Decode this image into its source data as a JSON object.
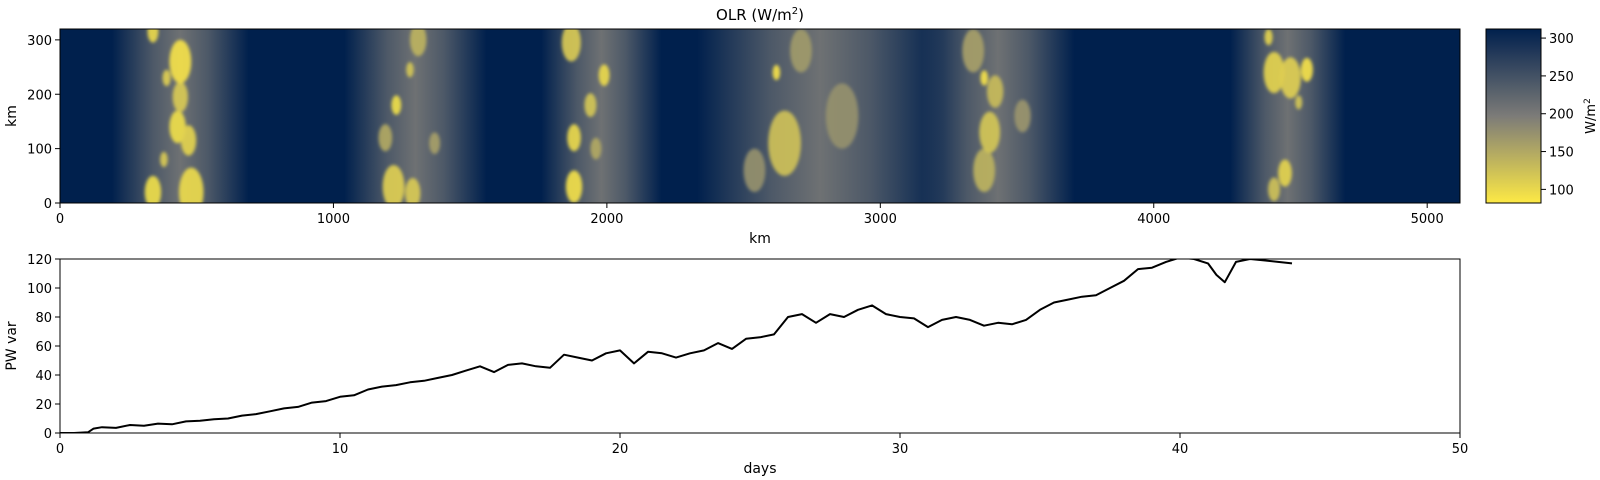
{
  "chart_data": [
    {
      "type": "heatmap",
      "title": "OLR (W/m",
      "title_sup": "2",
      "title_end": ")",
      "xlabel": "km",
      "ylabel": "km",
      "xlim": [
        0,
        5120
      ],
      "ylim": [
        0,
        320
      ],
      "xticks": [
        0,
        1000,
        2000,
        3000,
        4000,
        5000
      ],
      "yticks": [
        0,
        100,
        200,
        300
      ],
      "colormap": "cividis_r",
      "colors": {
        "high": "#00204d",
        "mid": "#7c7b78",
        "low": "#fde945"
      },
      "colorbar": {
        "label": "W/m",
        "label_sup": "2",
        "range": [
          82,
          312
        ],
        "ticks": [
          100,
          150,
          200,
          250,
          300
        ]
      },
      "convective_bands_km": [
        {
          "center": 440,
          "width": 500
        },
        {
          "center": 1300,
          "width": 520
        },
        {
          "center": 1980,
          "width": 440
        },
        {
          "center": 2780,
          "width": 900
        },
        {
          "center": 3430,
          "width": 560
        },
        {
          "center": 4490,
          "width": 420
        }
      ],
      "bright_clusters": [
        {
          "x": 340,
          "y": 20,
          "r": 30,
          "v": 95
        },
        {
          "x": 480,
          "y": 20,
          "r": 45,
          "v": 98
        },
        {
          "x": 430,
          "y": 140,
          "r": 30,
          "v": 95
        },
        {
          "x": 470,
          "y": 115,
          "r": 28,
          "v": 105
        },
        {
          "x": 440,
          "y": 195,
          "r": 28,
          "v": 115
        },
        {
          "x": 440,
          "y": 260,
          "r": 40,
          "v": 90
        },
        {
          "x": 340,
          "y": 315,
          "r": 20,
          "v": 100
        },
        {
          "x": 390,
          "y": 230,
          "r": 15,
          "v": 110
        },
        {
          "x": 380,
          "y": 80,
          "r": 14,
          "v": 115
        },
        {
          "x": 1220,
          "y": 30,
          "r": 40,
          "v": 110
        },
        {
          "x": 1290,
          "y": 18,
          "r": 28,
          "v": 115
        },
        {
          "x": 1230,
          "y": 180,
          "r": 18,
          "v": 95
        },
        {
          "x": 1310,
          "y": 300,
          "r": 30,
          "v": 140
        },
        {
          "x": 1280,
          "y": 245,
          "r": 14,
          "v": 120
        },
        {
          "x": 1190,
          "y": 120,
          "r": 25,
          "v": 150
        },
        {
          "x": 1370,
          "y": 110,
          "r": 20,
          "v": 160
        },
        {
          "x": 1880,
          "y": 30,
          "r": 30,
          "v": 92
        },
        {
          "x": 1880,
          "y": 120,
          "r": 25,
          "v": 100
        },
        {
          "x": 1940,
          "y": 180,
          "r": 22,
          "v": 120
        },
        {
          "x": 1990,
          "y": 235,
          "r": 20,
          "v": 100
        },
        {
          "x": 1870,
          "y": 295,
          "r": 35,
          "v": 115
        },
        {
          "x": 1960,
          "y": 100,
          "r": 20,
          "v": 150
        },
        {
          "x": 2650,
          "y": 110,
          "r": 60,
          "v": 125
        },
        {
          "x": 2620,
          "y": 240,
          "r": 14,
          "v": 90
        },
        {
          "x": 2710,
          "y": 280,
          "r": 40,
          "v": 165
        },
        {
          "x": 2860,
          "y": 160,
          "r": 60,
          "v": 175
        },
        {
          "x": 2540,
          "y": 60,
          "r": 40,
          "v": 175
        },
        {
          "x": 3380,
          "y": 60,
          "r": 40,
          "v": 140
        },
        {
          "x": 3400,
          "y": 130,
          "r": 38,
          "v": 120
        },
        {
          "x": 3380,
          "y": 230,
          "r": 14,
          "v": 90
        },
        {
          "x": 3420,
          "y": 205,
          "r": 30,
          "v": 130
        },
        {
          "x": 3340,
          "y": 280,
          "r": 40,
          "v": 160
        },
        {
          "x": 3520,
          "y": 160,
          "r": 30,
          "v": 170
        },
        {
          "x": 4440,
          "y": 240,
          "r": 38,
          "v": 105
        },
        {
          "x": 4500,
          "y": 230,
          "r": 38,
          "v": 110
        },
        {
          "x": 4560,
          "y": 245,
          "r": 22,
          "v": 90
        },
        {
          "x": 4420,
          "y": 305,
          "r": 15,
          "v": 105
        },
        {
          "x": 4480,
          "y": 55,
          "r": 25,
          "v": 105
        },
        {
          "x": 4440,
          "y": 25,
          "r": 22,
          "v": 125
        },
        {
          "x": 4530,
          "y": 185,
          "r": 13,
          "v": 120
        }
      ]
    },
    {
      "type": "line",
      "title": "",
      "xlabel": "days",
      "ylabel": "PW var",
      "xlim": [
        0,
        50
      ],
      "ylim": [
        0,
        120
      ],
      "xticks": [
        0,
        10,
        20,
        30,
        40,
        50
      ],
      "yticks": [
        0,
        20,
        40,
        60,
        80,
        100,
        120
      ],
      "line_color": "#000000",
      "series": [
        {
          "x": [
            0,
            0.5,
            1.0,
            1.2,
            1.5,
            2.0,
            2.5,
            3.0,
            3.5,
            4.0,
            4.5,
            5.0,
            5.5,
            6.0,
            6.5,
            7.0,
            7.5,
            8.0,
            8.5,
            9.0,
            9.5,
            10.0,
            10.5,
            11.0,
            11.5,
            12.0,
            12.5,
            13.0,
            13.5,
            14.0,
            14.5,
            15.0,
            15.5,
            16.0,
            16.5,
            17.0,
            17.5,
            18.0,
            18.5,
            19.0,
            19.5,
            20.0,
            20.5,
            21.0,
            21.5,
            22.0,
            22.5,
            23.0,
            23.5,
            24.0,
            24.5,
            25.0,
            25.5,
            26.0,
            26.5,
            27.0,
            27.5,
            28.0,
            28.5,
            29.0,
            29.5,
            30.0,
            30.5,
            31.0,
            31.5,
            32.0,
            32.5,
            33.0,
            33.5,
            34.0,
            34.5,
            35.0,
            35.5,
            36.0,
            36.5,
            37.0,
            37.5,
            38.0,
            38.5,
            39.0,
            39.5,
            40.0,
            40.5,
            41.0,
            41.3,
            41.6,
            42.0,
            42.5,
            43.0,
            43.5,
            44.0
          ],
          "y": [
            0,
            0,
            0.5,
            3,
            4,
            3.5,
            5.5,
            5,
            6.5,
            6,
            8,
            8.5,
            9.5,
            10,
            12,
            13,
            15,
            17,
            18,
            21,
            22,
            25,
            26,
            30,
            32,
            33,
            35,
            36,
            38,
            40,
            43,
            46,
            42,
            47,
            48,
            46,
            45,
            54,
            52,
            50,
            55,
            57,
            48,
            56,
            55,
            52,
            55,
            57,
            62,
            58,
            65,
            66,
            68,
            80,
            82,
            76,
            82,
            80,
            85,
            88,
            82,
            80,
            79,
            73,
            78,
            80,
            78,
            74,
            76,
            75,
            78,
            85,
            90,
            92,
            94,
            95,
            100,
            105,
            113,
            114,
            118,
            121,
            120,
            117,
            109,
            104,
            118,
            120,
            119,
            118,
            117
          ]
        }
      ]
    }
  ]
}
